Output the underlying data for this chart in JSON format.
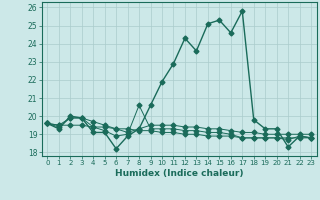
{
  "xlabel": "Humidex (Indice chaleur)",
  "background_color": "#cce8e8",
  "grid_color": "#aacccc",
  "line_color": "#1a6b5a",
  "xlim": [
    -0.5,
    23.5
  ],
  "ylim": [
    17.8,
    26.3
  ],
  "yticks": [
    18,
    19,
    20,
    21,
    22,
    23,
    24,
    25,
    26
  ],
  "xticks": [
    0,
    1,
    2,
    3,
    4,
    5,
    6,
    7,
    8,
    9,
    10,
    11,
    12,
    13,
    14,
    15,
    16,
    17,
    18,
    19,
    20,
    21,
    22,
    23
  ],
  "series": [
    {
      "x": [
        0,
        1,
        2,
        3,
        4,
        5,
        6,
        7,
        8,
        9,
        10,
        11,
        12,
        13,
        14,
        15,
        16,
        17,
        18,
        19,
        20,
        21,
        22,
        23
      ],
      "y": [
        19.6,
        19.3,
        20.0,
        19.9,
        19.1,
        19.1,
        18.2,
        18.9,
        19.3,
        20.6,
        21.9,
        22.9,
        24.3,
        23.6,
        25.1,
        25.3,
        24.6,
        25.8,
        19.8,
        19.3,
        19.3,
        18.3,
        18.9,
        18.8
      ]
    },
    {
      "x": [
        0,
        1,
        2,
        3,
        4,
        5,
        6,
        7,
        8,
        9,
        10,
        11,
        12,
        13,
        14,
        15,
        16,
        17,
        18,
        19,
        20,
        21,
        22,
        23
      ],
      "y": [
        19.6,
        19.5,
        19.5,
        19.5,
        19.4,
        19.4,
        19.3,
        19.3,
        19.2,
        19.2,
        19.1,
        19.1,
        19.0,
        19.0,
        18.9,
        18.9,
        18.9,
        18.8,
        18.8,
        18.8,
        18.8,
        18.8,
        18.8,
        18.8
      ]
    },
    {
      "x": [
        0,
        1,
        2,
        3,
        4,
        5,
        6,
        7,
        8,
        9,
        10,
        11,
        12,
        13,
        14,
        15,
        16,
        17,
        18,
        19,
        20,
        21,
        22,
        23
      ],
      "y": [
        19.6,
        19.5,
        19.9,
        19.9,
        19.7,
        19.5,
        19.3,
        19.1,
        19.3,
        19.5,
        19.5,
        19.5,
        19.4,
        19.4,
        19.3,
        19.3,
        19.2,
        19.1,
        19.1,
        19.0,
        19.0,
        19.0,
        19.0,
        19.0
      ]
    },
    {
      "x": [
        0,
        1,
        2,
        3,
        4,
        5,
        6,
        7,
        8,
        9,
        10,
        11,
        12,
        13,
        14,
        15,
        16,
        17,
        18,
        19,
        20,
        21,
        22,
        23
      ],
      "y": [
        19.6,
        19.4,
        19.9,
        19.9,
        19.4,
        19.2,
        18.9,
        19.0,
        20.6,
        19.3,
        19.3,
        19.3,
        19.2,
        19.2,
        19.1,
        19.1,
        19.0,
        18.8,
        18.8,
        18.8,
        18.8,
        18.7,
        18.9,
        18.8
      ]
    }
  ]
}
